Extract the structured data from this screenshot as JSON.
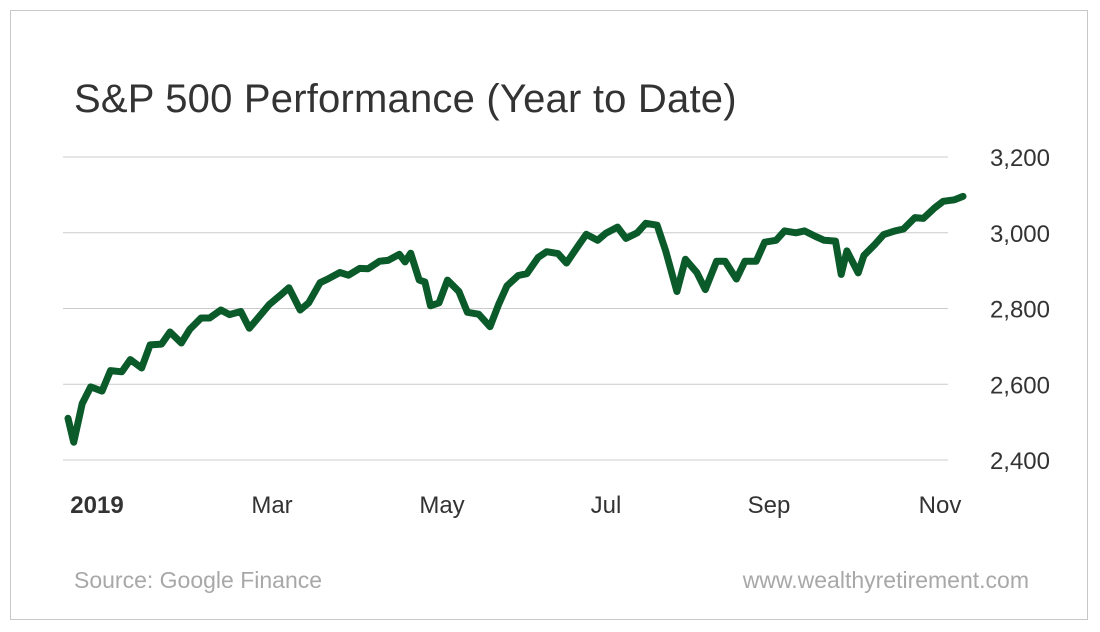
{
  "title": "S&P 500 Performance (Year to Date)",
  "source": "Source: Google Finance",
  "website": "www.wealthyretirement.com",
  "colors": {
    "line": "#0b5a2a",
    "grid": "#cccccc",
    "text": "#333333",
    "footer": "#a8a8a8"
  },
  "chart_data": {
    "type": "line",
    "title": "S&P 500 Performance (Year to Date)",
    "xlabel": "",
    "ylabel": "",
    "x_ticks": [
      "2019",
      "Mar",
      "May",
      "Jul",
      "Sep",
      "Nov"
    ],
    "y_ticks": [
      "2,400",
      "2,600",
      "2,800",
      "3,000",
      "3,200"
    ],
    "ylim": [
      2400,
      3200
    ],
    "grid": true,
    "y_axis_side": "right",
    "series": [
      {
        "x": [
          "2019-01-02",
          "2019-01-04",
          "2019-01-07",
          "2019-01-10",
          "2019-01-14",
          "2019-01-17",
          "2019-01-21",
          "2019-01-24",
          "2019-01-28",
          "2019-01-31",
          "2019-02-04",
          "2019-02-07",
          "2019-02-11",
          "2019-02-14",
          "2019-02-18",
          "2019-02-21",
          "2019-02-25",
          "2019-02-28",
          "2019-03-04",
          "2019-03-07",
          "2019-03-11",
          "2019-03-14",
          "2019-03-18",
          "2019-03-21",
          "2019-03-25",
          "2019-03-28",
          "2019-04-01",
          "2019-04-04",
          "2019-04-08",
          "2019-04-11",
          "2019-04-15",
          "2019-04-18",
          "2019-04-22",
          "2019-04-25",
          "2019-04-29",
          "2019-05-01",
          "2019-05-03",
          "2019-05-06",
          "2019-05-08",
          "2019-05-10",
          "2019-05-13",
          "2019-05-16",
          "2019-05-20",
          "2019-05-23",
          "2019-05-27",
          "2019-05-31",
          "2019-06-03",
          "2019-06-06",
          "2019-06-10",
          "2019-06-13",
          "2019-06-17",
          "2019-06-20",
          "2019-06-24",
          "2019-06-27",
          "2019-07-01",
          "2019-07-04",
          "2019-07-08",
          "2019-07-11",
          "2019-07-15",
          "2019-07-18",
          "2019-07-22",
          "2019-07-25",
          "2019-07-29",
          "2019-08-01",
          "2019-08-05",
          "2019-08-08",
          "2019-08-12",
          "2019-08-15",
          "2019-08-19",
          "2019-08-22",
          "2019-08-26",
          "2019-08-29",
          "2019-09-02",
          "2019-09-05",
          "2019-09-09",
          "2019-09-12",
          "2019-09-16",
          "2019-09-19",
          "2019-09-23",
          "2019-09-26",
          "2019-09-30",
          "2019-10-02",
          "2019-10-04",
          "2019-10-08",
          "2019-10-10",
          "2019-10-14",
          "2019-10-17",
          "2019-10-21",
          "2019-10-24",
          "2019-10-28",
          "2019-10-31",
          "2019-11-04",
          "2019-11-07",
          "2019-11-11",
          "2019-11-14"
        ],
        "values": [
          2510,
          2447,
          2549,
          2593,
          2582,
          2636,
          2633,
          2665,
          2643,
          2704,
          2706,
          2738,
          2709,
          2745,
          2775,
          2775,
          2796,
          2784,
          2792,
          2748,
          2783,
          2810,
          2835,
          2855,
          2796,
          2815,
          2868,
          2879,
          2895,
          2888,
          2906,
          2905,
          2925,
          2927,
          2943,
          2923,
          2946,
          2875,
          2870,
          2807,
          2815,
          2875,
          2845,
          2790,
          2785,
          2752,
          2810,
          2860,
          2887,
          2892,
          2935,
          2950,
          2945,
          2920,
          2964,
          2996,
          2980,
          2999,
          3015,
          2985,
          3000,
          3025,
          3020,
          2953,
          2845,
          2930,
          2895,
          2850,
          2925,
          2925,
          2878,
          2925,
          2925,
          2975,
          2980,
          3005,
          3000,
          3005,
          2990,
          2980,
          2978,
          2890,
          2952,
          2894,
          2940,
          2970,
          2995,
          3005,
          3010,
          3040,
          3038,
          3066,
          3083,
          3087,
          3096
        ]
      }
    ]
  }
}
